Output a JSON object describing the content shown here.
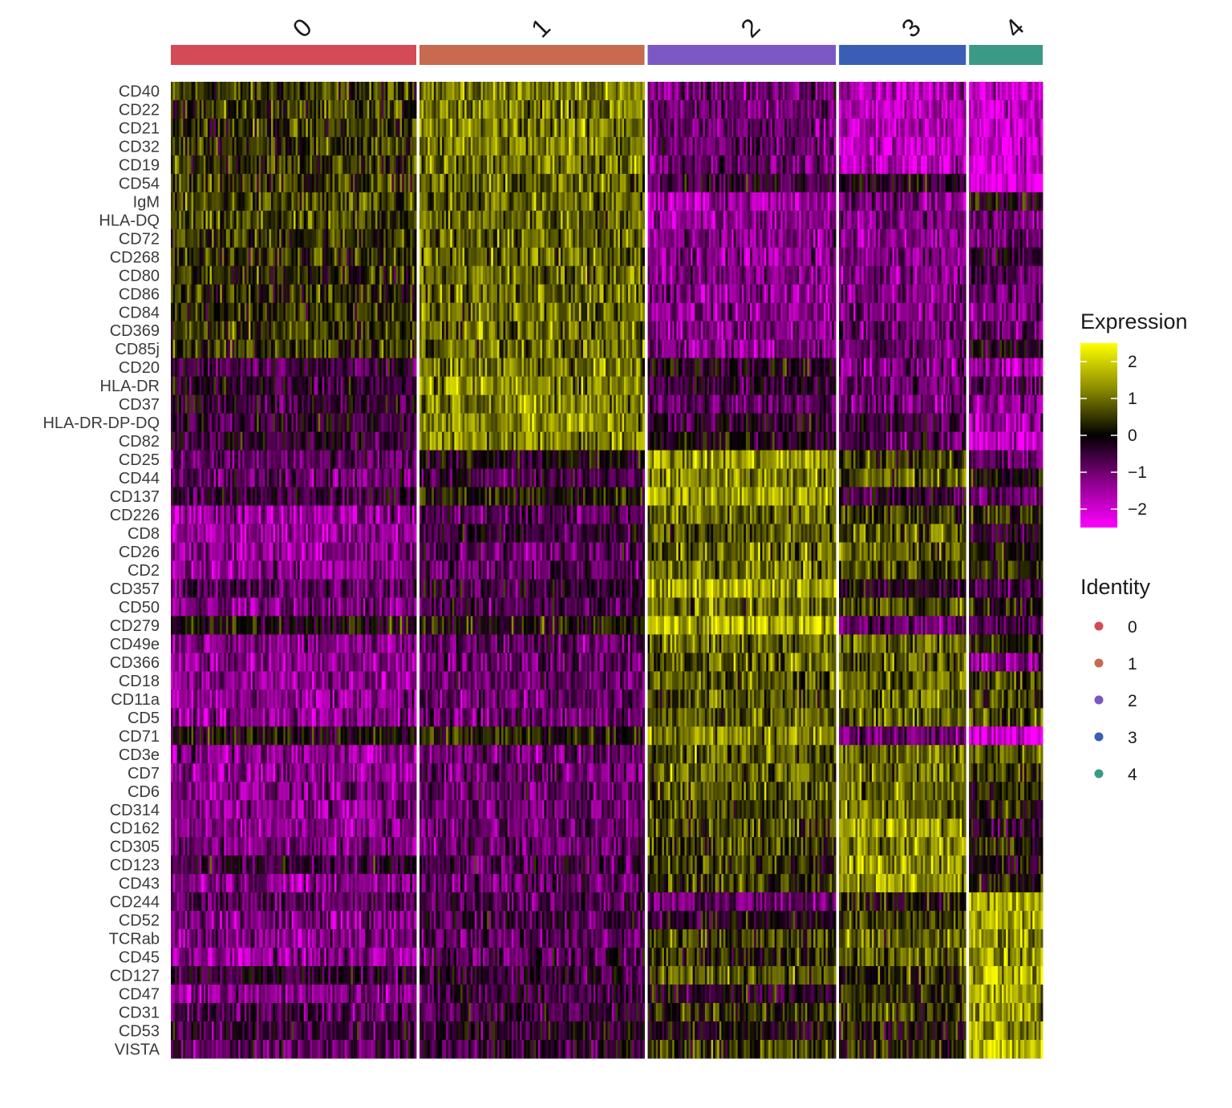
{
  "chart_data": {
    "type": "heatmap",
    "clusters": [
      {
        "label": "0",
        "color": "#D34B57",
        "cells": 120
      },
      {
        "label": "1",
        "color": "#C76A4F",
        "cells": 110
      },
      {
        "label": "2",
        "color": "#7B58C4",
        "cells": 92
      },
      {
        "label": "3",
        "color": "#3A5EB5",
        "cells": 62
      },
      {
        "label": "4",
        "color": "#3A9A86",
        "cells": 36
      }
    ],
    "rows": [
      {
        "gene": "CD40",
        "mean": [
          0.5,
          1.2,
          -1.0,
          -1.8,
          -2.0
        ]
      },
      {
        "gene": "CD22",
        "mean": [
          0.5,
          1.2,
          -1.0,
          -1.8,
          -2.0
        ]
      },
      {
        "gene": "CD21",
        "mean": [
          0.5,
          1.2,
          -1.0,
          -1.8,
          -2.0
        ]
      },
      {
        "gene": "CD32",
        "mean": [
          0.5,
          1.2,
          -1.0,
          -1.8,
          -2.0
        ]
      },
      {
        "gene": "CD19",
        "mean": [
          0.5,
          1.2,
          -1.0,
          -1.8,
          -2.0
        ]
      },
      {
        "gene": "CD54",
        "mean": [
          0.5,
          0.9,
          -0.4,
          -0.3,
          -2.3
        ]
      },
      {
        "gene": "IgM",
        "mean": [
          0.6,
          1.0,
          -1.6,
          -1.2,
          0.0
        ]
      },
      {
        "gene": "HLA-DQ",
        "mean": [
          0.6,
          1.0,
          -1.4,
          -1.2,
          -1.2
        ]
      },
      {
        "gene": "CD72",
        "mean": [
          0.5,
          1.0,
          -1.4,
          -1.4,
          -1.0
        ]
      },
      {
        "gene": "CD268",
        "mean": [
          0.4,
          1.0,
          -1.4,
          -1.2,
          -0.5
        ]
      },
      {
        "gene": "CD80",
        "mean": [
          0.4,
          1.0,
          -1.3,
          -1.2,
          -0.8
        ]
      },
      {
        "gene": "CD86",
        "mean": [
          0.4,
          1.0,
          -1.3,
          -1.2,
          -1.0
        ]
      },
      {
        "gene": "CD84",
        "mean": [
          0.4,
          1.0,
          -1.3,
          -1.2,
          -1.2
        ]
      },
      {
        "gene": "CD369",
        "mean": [
          0.5,
          1.0,
          -1.3,
          -1.0,
          -0.8
        ]
      },
      {
        "gene": "CD85j",
        "mean": [
          0.5,
          1.0,
          -1.3,
          -1.0,
          -0.3
        ]
      },
      {
        "gene": "CD20",
        "mean": [
          -0.6,
          1.2,
          -0.2,
          -1.2,
          -1.6
        ]
      },
      {
        "gene": "HLA-DR",
        "mean": [
          -0.4,
          1.3,
          -0.5,
          -1.0,
          -1.0
        ]
      },
      {
        "gene": "CD37",
        "mean": [
          -0.5,
          1.3,
          -0.8,
          -1.2,
          -1.2
        ]
      },
      {
        "gene": "HLA-DR-DP-DQ",
        "mean": [
          -0.3,
          1.4,
          -0.4,
          -0.6,
          -1.6
        ]
      },
      {
        "gene": "CD82",
        "mean": [
          -0.4,
          1.3,
          -0.1,
          -0.8,
          -2.0
        ]
      },
      {
        "gene": "CD25",
        "mean": [
          -1.0,
          -0.1,
          1.5,
          0.5,
          -1.0
        ]
      },
      {
        "gene": "CD44",
        "mean": [
          -1.0,
          -0.6,
          1.3,
          0.9,
          0.0
        ]
      },
      {
        "gene": "CD137",
        "mean": [
          -0.6,
          0.3,
          1.6,
          -0.5,
          -0.8
        ]
      },
      {
        "gene": "CD226",
        "mean": [
          -1.4,
          -0.8,
          1.0,
          0.6,
          0.4
        ]
      },
      {
        "gene": "CD8",
        "mean": [
          -1.5,
          -0.5,
          0.8,
          0.8,
          -0.3
        ]
      },
      {
        "gene": "CD26",
        "mean": [
          -1.4,
          -0.8,
          1.0,
          0.9,
          0.2
        ]
      },
      {
        "gene": "CD2",
        "mean": [
          -1.4,
          -0.8,
          1.1,
          0.8,
          0.3
        ]
      },
      {
        "gene": "CD357",
        "mean": [
          -0.8,
          -0.5,
          1.6,
          -0.3,
          -0.6
        ]
      },
      {
        "gene": "CD50",
        "mean": [
          -1.2,
          -0.8,
          1.0,
          0.8,
          0.0
        ]
      },
      {
        "gene": "CD279",
        "mean": [
          0.0,
          0.1,
          1.8,
          -1.0,
          -0.6
        ]
      },
      {
        "gene": "CD49e",
        "mean": [
          -1.3,
          -0.9,
          1.0,
          1.0,
          0.2
        ]
      },
      {
        "gene": "CD366",
        "mean": [
          -1.3,
          -0.9,
          0.9,
          0.9,
          -1.2
        ]
      },
      {
        "gene": "CD18",
        "mean": [
          -1.4,
          -1.0,
          0.9,
          1.0,
          0.6
        ]
      },
      {
        "gene": "CD11a",
        "mean": [
          -1.4,
          -1.0,
          0.8,
          1.0,
          0.6
        ]
      },
      {
        "gene": "CD5",
        "mean": [
          -1.4,
          -1.0,
          0.9,
          1.0,
          0.7
        ]
      },
      {
        "gene": "CD71",
        "mean": [
          0.0,
          0.3,
          1.3,
          -1.0,
          -2.2
        ]
      },
      {
        "gene": "CD3e",
        "mean": [
          -1.4,
          -1.0,
          0.9,
          1.1,
          0.8
        ]
      },
      {
        "gene": "CD7",
        "mean": [
          -1.4,
          -1.0,
          0.9,
          1.1,
          0.5
        ]
      },
      {
        "gene": "CD6",
        "mean": [
          -1.3,
          -1.0,
          0.9,
          1.1,
          0.3
        ]
      },
      {
        "gene": "CD314",
        "mean": [
          -1.3,
          -1.0,
          0.7,
          1.0,
          0.2
        ]
      },
      {
        "gene": "CD162",
        "mean": [
          -1.3,
          -1.0,
          0.7,
          1.5,
          -0.4
        ]
      },
      {
        "gene": "CD305",
        "mean": [
          -1.2,
          -1.0,
          0.6,
          1.5,
          0.4
        ]
      },
      {
        "gene": "CD123",
        "mean": [
          -0.5,
          -0.7,
          0.5,
          1.6,
          -0.2
        ]
      },
      {
        "gene": "CD43",
        "mean": [
          -1.3,
          -1.0,
          0.6,
          1.5,
          0.2
        ]
      },
      {
        "gene": "CD244",
        "mean": [
          -0.8,
          -0.8,
          -1.0,
          0.2,
          1.6
        ]
      },
      {
        "gene": "CD52",
        "mean": [
          -1.2,
          -0.6,
          -0.2,
          0.5,
          1.8
        ]
      },
      {
        "gene": "TCRab",
        "mean": [
          -1.3,
          -0.9,
          0.5,
          0.8,
          1.5
        ]
      },
      {
        "gene": "CD45",
        "mean": [
          -1.3,
          -0.8,
          0.3,
          0.8,
          1.4
        ]
      },
      {
        "gene": "CD127",
        "mean": [
          -0.4,
          -0.4,
          0.8,
          0.4,
          1.6
        ]
      },
      {
        "gene": "CD47",
        "mean": [
          -1.4,
          -0.6,
          -0.2,
          0.3,
          1.7
        ]
      },
      {
        "gene": "CD31",
        "mean": [
          -0.8,
          -0.6,
          0.4,
          0.6,
          1.6
        ]
      },
      {
        "gene": "CD53",
        "mean": [
          -0.6,
          -0.3,
          -0.1,
          0.2,
          1.6
        ]
      },
      {
        "gene": "VISTA",
        "mean": [
          -0.8,
          -0.5,
          0.6,
          0.3,
          1.8
        ]
      }
    ],
    "color_scale": {
      "min": -2.5,
      "mid": 0,
      "max": 2.5,
      "low_color": "#FF00FF",
      "mid_color": "#000000",
      "high_color": "#FFFF00",
      "ticks": [
        2,
        1,
        0,
        -1,
        -2
      ],
      "tick_labels": [
        "2",
        "1",
        "0",
        "−1",
        "−2"
      ]
    },
    "legend_expression": {
      "title": "Expression"
    },
    "legend_identity": {
      "title": "Identity",
      "items": [
        "0",
        "1",
        "2",
        "3",
        "4"
      ]
    },
    "legend_placement": "right"
  }
}
